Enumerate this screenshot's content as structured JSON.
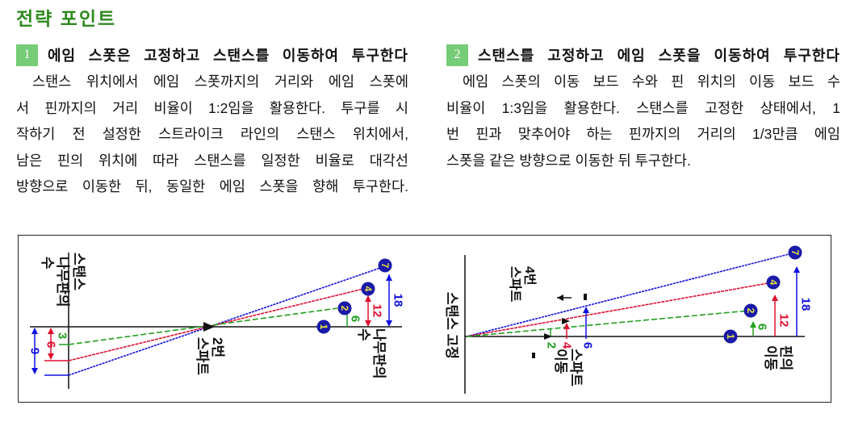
{
  "title": "전략 포인트",
  "sections": [
    {
      "number": "1",
      "heading": "에임 스폿은 고정하고 스탠스를 이동하여 투구한다",
      "lines": [
        "스탠스 위치에서 에임 스폿까지의 거리와 에임 스폿에",
        "서 핀까지의 거리 비율이 1:2임을 활용한다. 투구를 시",
        "작하기 전 설정한 스트라이크 라인의 스탠스 위치에서,",
        "남은 핀의 위치에 따라 스탠스를 일정한 비율로 대각선",
        "방향으로 이동한 뒤, 동일한 에임 스폿을 향해 투구한다."
      ]
    },
    {
      "number": "2",
      "heading": "스탠스를 고정하고 에임 스폿을 이동하여 투구한다",
      "lines": [
        "에임 스폿의 이동 보드 수와 핀 위치의 이동 보드 수",
        "비율이 1:3임을 활용한다. 스탠스를 고정한 상태에서, 1",
        "번 핀과 맞추어야 하는 핀까지의 거리의 1/3만큼 에임",
        "스폿을 같은 방향으로 이동한 뒤 투구한다."
      ]
    }
  ],
  "colors": {
    "title": "#2f8a1f",
    "badge": "#77cc77",
    "blue": "#1010e0",
    "red": "#e01030",
    "green": "#20a020",
    "pin_fill": "#1a1aa8",
    "pin_text": "#e8e040"
  },
  "diagram1": {
    "stance_label": "스탠스",
    "boards_label_left": [
      "나무판의",
      "수"
    ],
    "spot_label": [
      "2번",
      "스파트"
    ],
    "boards_label_right": [
      "나무판의",
      "수"
    ],
    "pins": [
      "1",
      "2",
      "4",
      "7"
    ],
    "left_values": {
      "green": "3",
      "red": "6",
      "blue": "9"
    },
    "right_values": {
      "green": "6",
      "red": "12",
      "blue": "18"
    }
  },
  "diagram2": {
    "stance_label": "스탠스 고정",
    "spot_label": [
      "4번",
      "스파트"
    ],
    "spot_move_label": [
      "스파트",
      "이동"
    ],
    "pin_move_label": [
      "핀의",
      "이동"
    ],
    "pins": [
      "1",
      "2",
      "4",
      "7"
    ],
    "spot_values": {
      "green": "2",
      "red": "4",
      "blue": "6"
    },
    "pin_values": {
      "green": "6",
      "red": "12",
      "blue": "18"
    }
  }
}
